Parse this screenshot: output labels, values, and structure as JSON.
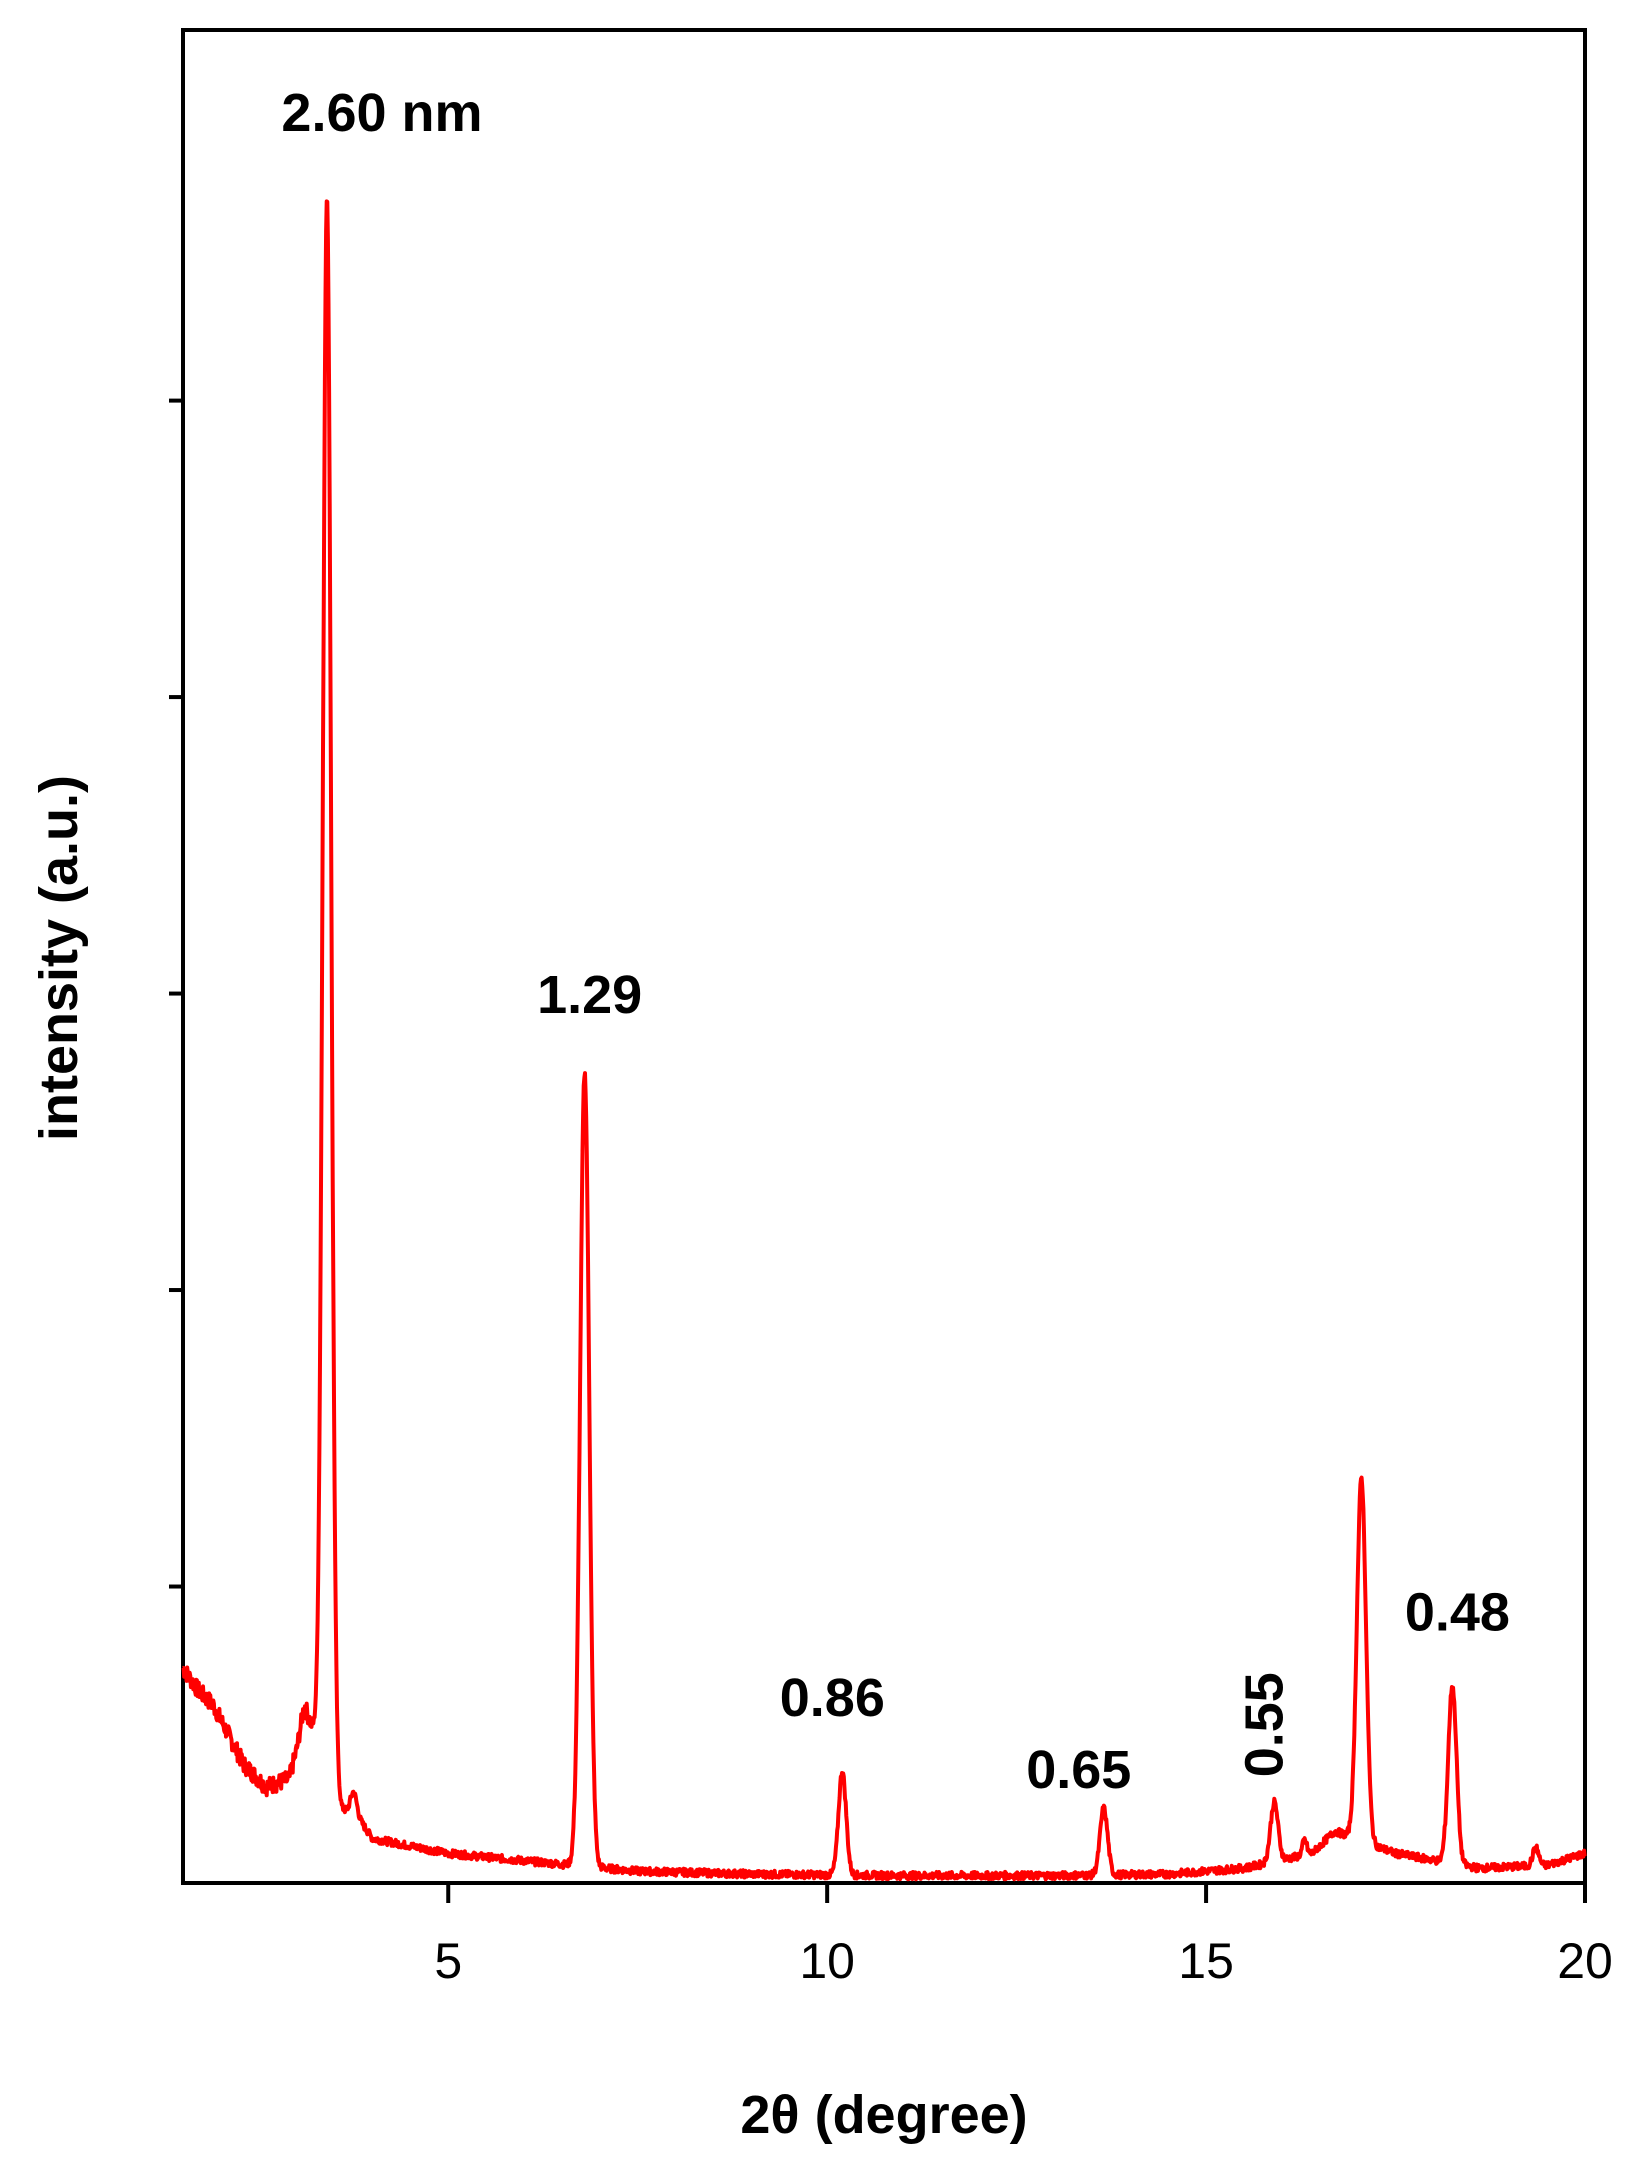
{
  "chart_data": {
    "type": "line",
    "title": "",
    "xlabel": "2θ (degree)",
    "ylabel": "intensity (a.u.)",
    "xlim": [
      1.5,
      20
    ],
    "ylim": [
      0,
      1
    ],
    "x_ticks": [
      5,
      10,
      15,
      20
    ],
    "x_tick_labels": [
      "5",
      "10",
      "15",
      "20"
    ],
    "y_ticks": [
      0.2,
      0.4,
      0.6,
      0.8,
      1.0
    ],
    "y_tick_labels": [],
    "grid": false,
    "line_color": "#ff0000",
    "baseline": [
      [
        1.5,
        0.145
      ],
      [
        1.7,
        0.13
      ],
      [
        1.9,
        0.12
      ],
      [
        2.1,
        0.1
      ],
      [
        2.3,
        0.08
      ],
      [
        2.6,
        0.065
      ],
      [
        2.9,
        0.07
      ],
      [
        3.0,
        0.09
      ],
      [
        3.1,
        0.12
      ],
      [
        3.6,
        0.05
      ],
      [
        3.8,
        0.045
      ],
      [
        4.0,
        0.03
      ],
      [
        5.0,
        0.02
      ],
      [
        6.0,
        0.015
      ],
      [
        7.5,
        0.008
      ],
      [
        9.0,
        0.006
      ],
      [
        11.0,
        0.005
      ],
      [
        13.0,
        0.005
      ],
      [
        14.5,
        0.006
      ],
      [
        15.5,
        0.01
      ],
      [
        16.4,
        0.02
      ],
      [
        16.7,
        0.035
      ],
      [
        17.5,
        0.02
      ],
      [
        18.6,
        0.01
      ],
      [
        19.5,
        0.012
      ],
      [
        20.0,
        0.02
      ]
    ],
    "peaks": [
      {
        "x": 3.4,
        "height": 1.06,
        "width": 0.055,
        "label": "2.60 nm"
      },
      {
        "x": 6.8,
        "height": 0.535,
        "width": 0.06,
        "label": "1.29"
      },
      {
        "x": 10.2,
        "height": 0.07,
        "width": 0.05,
        "label": "0.86"
      },
      {
        "x": 13.65,
        "height": 0.045,
        "width": 0.05,
        "label": "0.65"
      },
      {
        "x": 15.9,
        "height": 0.04,
        "width": 0.05,
        "label": "0.55"
      },
      {
        "x": 17.05,
        "height": 0.245,
        "width": 0.06,
        "label": ""
      },
      {
        "x": 18.25,
        "height": 0.12,
        "width": 0.055,
        "label": "0.48"
      },
      {
        "x": 3.75,
        "height": 0.015,
        "width": 0.04,
        "label": ""
      },
      {
        "x": 16.3,
        "height": 0.01,
        "width": 0.03,
        "label": ""
      },
      {
        "x": 19.35,
        "height": 0.012,
        "width": 0.04,
        "label": ""
      }
    ]
  }
}
